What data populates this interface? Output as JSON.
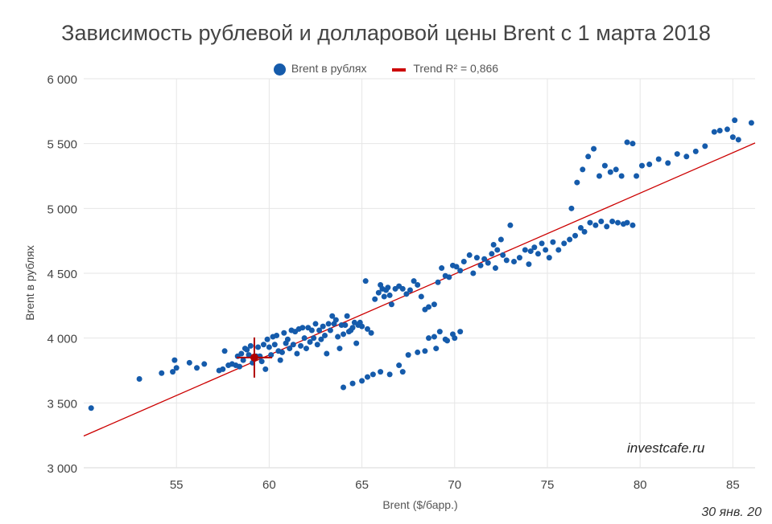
{
  "chart_data": {
    "type": "scatter",
    "title": "Зависимость рублевой и долларовой цены Brent с 1 марта 2018",
    "xlabel": "Brent ($/барр.)",
    "ylabel": "Brent в рублях",
    "xlim": [
      50,
      86.2
    ],
    "ylim": [
      3000,
      6000
    ],
    "xticks": [
      55,
      60,
      65,
      70,
      75,
      80,
      85
    ],
    "yticks": [
      3000,
      3500,
      4000,
      4500,
      5000,
      5500,
      6000
    ],
    "ytick_labels": [
      "3 000",
      "3 500",
      "4 000",
      "4 500",
      "5 000",
      "5 500",
      "6 000"
    ],
    "grid": true,
    "legend_position": "top-center",
    "colors": {
      "points": "#155bab",
      "trend": "#cc0000"
    },
    "series": [
      {
        "name": "Brent в рублях",
        "points": [
          [
            50.4,
            3460
          ],
          [
            53.0,
            3685
          ],
          [
            54.2,
            3730
          ],
          [
            54.8,
            3740
          ],
          [
            54.9,
            3830
          ],
          [
            55.0,
            3770
          ],
          [
            55.7,
            3810
          ],
          [
            56.1,
            3770
          ],
          [
            56.5,
            3800
          ],
          [
            57.3,
            3750
          ],
          [
            57.5,
            3760
          ],
          [
            57.6,
            3900
          ],
          [
            57.8,
            3790
          ],
          [
            58.0,
            3800
          ],
          [
            58.2,
            3790
          ],
          [
            58.3,
            3860
          ],
          [
            58.4,
            3780
          ],
          [
            58.5,
            3880
          ],
          [
            58.6,
            3830
          ],
          [
            58.7,
            3920
          ],
          [
            58.8,
            3910
          ],
          [
            58.9,
            3870
          ],
          [
            59.0,
            3940
          ],
          [
            59.1,
            3810
          ],
          [
            59.2,
            3850
          ],
          [
            59.3,
            3860
          ],
          [
            59.4,
            3930
          ],
          [
            59.5,
            3860
          ],
          [
            59.6,
            3820
          ],
          [
            59.7,
            3950
          ],
          [
            59.8,
            3760
          ],
          [
            59.9,
            3990
          ],
          [
            60.0,
            3930
          ],
          [
            60.1,
            3870
          ],
          [
            60.2,
            4010
          ],
          [
            60.3,
            3950
          ],
          [
            60.4,
            4020
          ],
          [
            60.5,
            3900
          ],
          [
            60.6,
            3830
          ],
          [
            60.7,
            3890
          ],
          [
            60.8,
            4040
          ],
          [
            60.9,
            3960
          ],
          [
            61.0,
            3990
          ],
          [
            61.1,
            3920
          ],
          [
            61.2,
            4060
          ],
          [
            61.3,
            3950
          ],
          [
            61.4,
            4050
          ],
          [
            61.5,
            3880
          ],
          [
            61.6,
            4070
          ],
          [
            61.7,
            3940
          ],
          [
            61.8,
            4080
          ],
          [
            61.9,
            4000
          ],
          [
            62.0,
            3920
          ],
          [
            62.1,
            4080
          ],
          [
            62.2,
            3970
          ],
          [
            62.3,
            4060
          ],
          [
            62.4,
            4000
          ],
          [
            62.5,
            4110
          ],
          [
            62.6,
            3950
          ],
          [
            62.7,
            4060
          ],
          [
            62.8,
            3990
          ],
          [
            62.9,
            4090
          ],
          [
            63.0,
            4020
          ],
          [
            63.1,
            3880
          ],
          [
            63.2,
            4110
          ],
          [
            63.3,
            4060
          ],
          [
            63.4,
            4170
          ],
          [
            63.5,
            4110
          ],
          [
            63.6,
            4140
          ],
          [
            63.7,
            4010
          ],
          [
            63.8,
            3920
          ],
          [
            63.9,
            4100
          ],
          [
            64.0,
            4030
          ],
          [
            64.1,
            4100
          ],
          [
            64.2,
            4170
          ],
          [
            64.3,
            4050
          ],
          [
            64.4,
            4060
          ],
          [
            64.5,
            4080
          ],
          [
            64.6,
            4120
          ],
          [
            64.7,
            3960
          ],
          [
            64.8,
            4100
          ],
          [
            64.9,
            4120
          ],
          [
            65.0,
            4090
          ],
          [
            65.2,
            4440
          ],
          [
            65.3,
            4070
          ],
          [
            65.5,
            4040
          ],
          [
            65.7,
            4300
          ],
          [
            65.9,
            4350
          ],
          [
            66.0,
            4410
          ],
          [
            66.1,
            4380
          ],
          [
            66.2,
            4320
          ],
          [
            66.3,
            4370
          ],
          [
            66.4,
            4390
          ],
          [
            66.5,
            4330
          ],
          [
            66.6,
            4260
          ],
          [
            66.8,
            4380
          ],
          [
            67.0,
            4400
          ],
          [
            67.2,
            4380
          ],
          [
            67.4,
            4340
          ],
          [
            67.6,
            4370
          ],
          [
            67.8,
            4440
          ],
          [
            68.0,
            4410
          ],
          [
            68.2,
            4320
          ],
          [
            68.4,
            4220
          ],
          [
            68.6,
            4240
          ],
          [
            68.9,
            4260
          ],
          [
            68.6,
            4000
          ],
          [
            68.9,
            4010
          ],
          [
            69.2,
            4050
          ],
          [
            69.5,
            3990
          ],
          [
            69.9,
            4030
          ],
          [
            70.3,
            4050
          ],
          [
            69.1,
            4430
          ],
          [
            69.3,
            4540
          ],
          [
            69.5,
            4480
          ],
          [
            69.7,
            4470
          ],
          [
            69.9,
            4560
          ],
          [
            70.1,
            4550
          ],
          [
            70.3,
            4520
          ],
          [
            70.5,
            4590
          ],
          [
            70.8,
            4640
          ],
          [
            71.0,
            4500
          ],
          [
            71.2,
            4620
          ],
          [
            71.4,
            4560
          ],
          [
            71.6,
            4610
          ],
          [
            71.8,
            4580
          ],
          [
            72.0,
            4650
          ],
          [
            72.1,
            4720
          ],
          [
            72.2,
            4540
          ],
          [
            72.3,
            4680
          ],
          [
            72.5,
            4760
          ],
          [
            72.6,
            4640
          ],
          [
            72.8,
            4600
          ],
          [
            73.0,
            4870
          ],
          [
            73.2,
            4590
          ],
          [
            73.5,
            4620
          ],
          [
            73.8,
            4680
          ],
          [
            74.0,
            4570
          ],
          [
            74.1,
            4670
          ],
          [
            74.3,
            4700
          ],
          [
            74.5,
            4650
          ],
          [
            74.7,
            4730
          ],
          [
            74.9,
            4680
          ],
          [
            75.1,
            4620
          ],
          [
            75.3,
            4740
          ],
          [
            75.6,
            4680
          ],
          [
            75.9,
            4730
          ],
          [
            76.2,
            4760
          ],
          [
            76.5,
            4790
          ],
          [
            76.8,
            4850
          ],
          [
            77.0,
            4820
          ],
          [
            77.3,
            4890
          ],
          [
            77.6,
            4870
          ],
          [
            77.9,
            4900
          ],
          [
            78.2,
            4860
          ],
          [
            78.5,
            4900
          ],
          [
            78.8,
            4890
          ],
          [
            79.1,
            4880
          ],
          [
            79.3,
            4890
          ],
          [
            79.6,
            4870
          ],
          [
            76.3,
            5000
          ],
          [
            76.6,
            5200
          ],
          [
            76.9,
            5300
          ],
          [
            77.2,
            5400
          ],
          [
            77.5,
            5460
          ],
          [
            77.8,
            5250
          ],
          [
            78.1,
            5330
          ],
          [
            78.4,
            5280
          ],
          [
            78.7,
            5300
          ],
          [
            79.0,
            5250
          ],
          [
            79.3,
            5510
          ],
          [
            79.6,
            5500
          ],
          [
            79.8,
            5250
          ],
          [
            80.1,
            5330
          ],
          [
            80.5,
            5340
          ],
          [
            81.0,
            5380
          ],
          [
            81.5,
            5350
          ],
          [
            82.0,
            5420
          ],
          [
            82.5,
            5400
          ],
          [
            83.0,
            5440
          ],
          [
            83.5,
            5480
          ],
          [
            84.0,
            5590
          ],
          [
            84.3,
            5600
          ],
          [
            84.7,
            5610
          ],
          [
            85.0,
            5550
          ],
          [
            85.1,
            5680
          ],
          [
            85.3,
            5530
          ],
          [
            86.0,
            5660
          ],
          [
            64.0,
            3620
          ],
          [
            64.5,
            3650
          ],
          [
            65.0,
            3670
          ],
          [
            65.3,
            3700
          ],
          [
            65.6,
            3720
          ],
          [
            66.0,
            3740
          ],
          [
            66.5,
            3720
          ],
          [
            67.0,
            3790
          ],
          [
            67.2,
            3740
          ],
          [
            67.5,
            3870
          ],
          [
            68.0,
            3890
          ],
          [
            68.4,
            3900
          ],
          [
            69.0,
            3920
          ],
          [
            69.6,
            3980
          ],
          [
            70.0,
            4000
          ]
        ]
      },
      {
        "name": "Trend R² = 0,866",
        "line": [
          [
            50,
            3245
          ],
          [
            86.2,
            5505
          ]
        ]
      }
    ]
  }
}
